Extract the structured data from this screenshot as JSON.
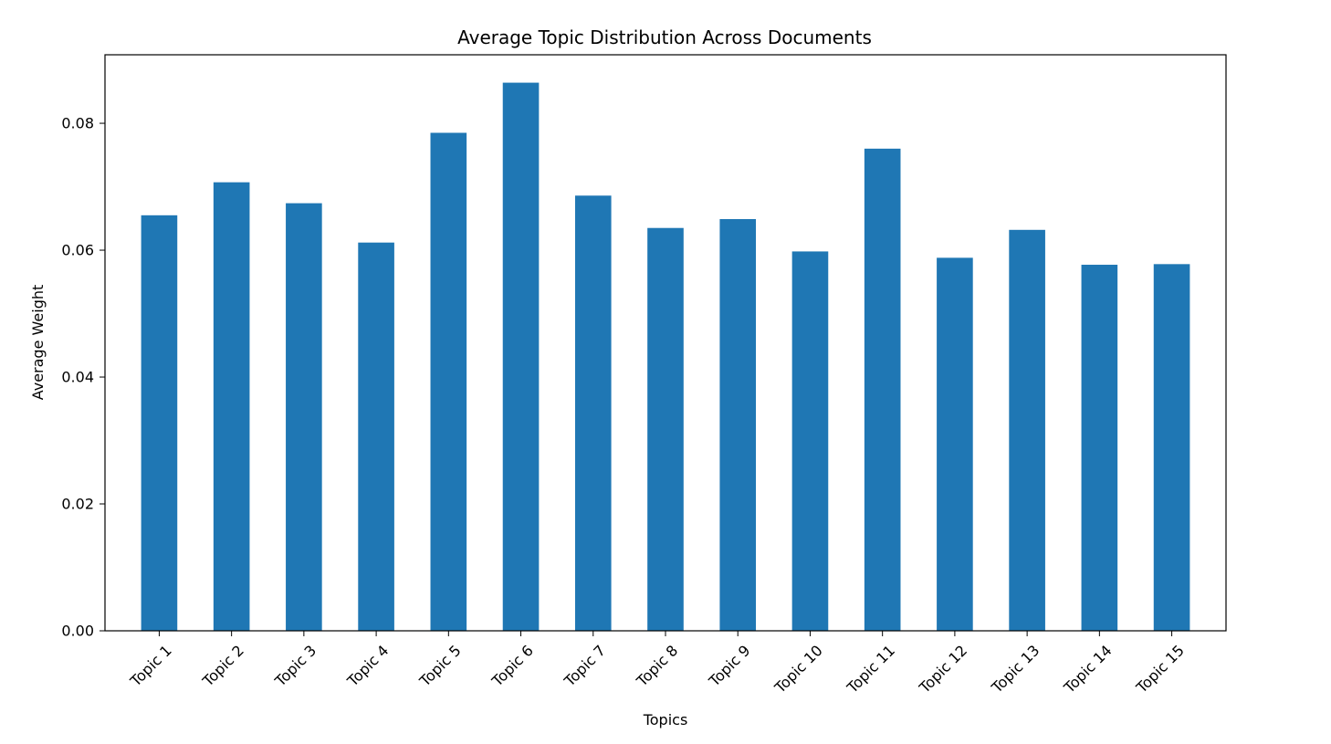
{
  "chart_data": {
    "type": "bar",
    "title": "Average Topic Distribution Across Documents",
    "xlabel": "Topics",
    "ylabel": "Average Weight",
    "categories": [
      "Topic 1",
      "Topic 2",
      "Topic 3",
      "Topic 4",
      "Topic 5",
      "Topic 6",
      "Topic 7",
      "Topic 8",
      "Topic 9",
      "Topic 10",
      "Topic 11",
      "Topic 12",
      "Topic 13",
      "Topic 14",
      "Topic 15"
    ],
    "values": [
      0.0655,
      0.0707,
      0.0674,
      0.0612,
      0.0785,
      0.0864,
      0.0686,
      0.0635,
      0.0649,
      0.0598,
      0.076,
      0.0588,
      0.0632,
      0.0577,
      0.0578
    ],
    "ylim": [
      0,
      0.0908
    ],
    "yticks": [
      0.0,
      0.02,
      0.04,
      0.06,
      0.08
    ],
    "ytick_labels": [
      "0.00",
      "0.02",
      "0.04",
      "0.06",
      "0.08"
    ],
    "bar_color": "#1f77b4",
    "grid": false,
    "legend": false
  }
}
